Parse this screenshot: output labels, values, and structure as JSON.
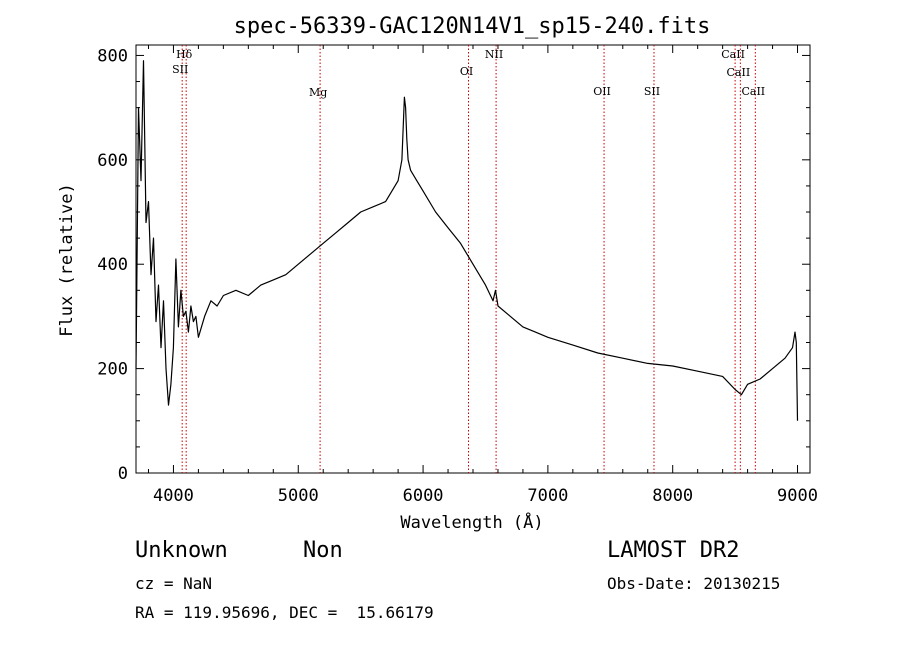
{
  "chart_data": {
    "type": "line",
    "title": "spec-56339-GAC120N14V1_sp15-240.fits",
    "xlabel": "Wavelength (Å)",
    "ylabel": "Flux (relative)",
    "xlim": [
      3700,
      9100
    ],
    "ylim": [
      0,
      820
    ],
    "xticks": [
      4000,
      5000,
      6000,
      7000,
      8000,
      9000
    ],
    "xtick_labels": [
      "4000",
      "5000",
      "6000",
      "7000",
      "8000",
      "9000"
    ],
    "yticks": [
      0,
      200,
      400,
      600,
      800
    ],
    "ytick_labels": [
      "0",
      "200",
      "400",
      "600",
      "800"
    ],
    "grid": false,
    "series": [
      {
        "color": "#000000",
        "x": [
          3700,
          3720,
          3740,
          3760,
          3780,
          3800,
          3820,
          3840,
          3860,
          3880,
          3900,
          3920,
          3940,
          3960,
          3980,
          4000,
          4020,
          4040,
          4060,
          4080,
          4100,
          4120,
          4140,
          4160,
          4180,
          4200,
          4250,
          4300,
          4350,
          4400,
          4500,
          4600,
          4700,
          4800,
          4900,
          5000,
          5100,
          5200,
          5300,
          5400,
          5500,
          5600,
          5700,
          5750,
          5800,
          5830,
          5850,
          5860,
          5870,
          5880,
          5900,
          5950,
          6000,
          6100,
          6200,
          6300,
          6400,
          6500,
          6560,
          6580,
          6600,
          6700,
          6800,
          6900,
          7000,
          7200,
          7400,
          7600,
          7800,
          8000,
          8200,
          8400,
          8500,
          8550,
          8600,
          8700,
          8800,
          8900,
          8960,
          8980,
          8990,
          9000
        ],
        "y": [
          200,
          700,
          560,
          790,
          480,
          520,
          380,
          450,
          290,
          360,
          240,
          330,
          200,
          130,
          170,
          240,
          410,
          280,
          350,
          300,
          310,
          270,
          320,
          290,
          300,
          260,
          300,
          330,
          320,
          340,
          350,
          340,
          360,
          370,
          380,
          400,
          420,
          440,
          460,
          480,
          500,
          510,
          520,
          540,
          560,
          600,
          720,
          700,
          640,
          600,
          580,
          560,
          540,
          500,
          470,
          440,
          400,
          360,
          330,
          350,
          320,
          300,
          280,
          270,
          260,
          245,
          230,
          220,
          210,
          205,
          195,
          185,
          160,
          150,
          170,
          180,
          200,
          220,
          240,
          270,
          250,
          100
        ]
      }
    ],
    "lines": [
      "Hδ",
      "SII",
      "Mg",
      "OI",
      "NII",
      "OII",
      "SII",
      "CaII",
      "CaII",
      "CaII"
    ],
    "line_positions": [
      4102,
      4070,
      5175,
      6364,
      6585,
      7450,
      7850,
      8500,
      8542,
      8662
    ],
    "line_color": "#cc0000"
  },
  "info": {
    "class": "Unknown",
    "subclass": "Non",
    "survey": "LAMOST DR2",
    "cz": "cz = NaN",
    "obs_date": "Obs-Date: 20130215",
    "coords": "RA = 119.95696, DEC =  15.66179"
  }
}
